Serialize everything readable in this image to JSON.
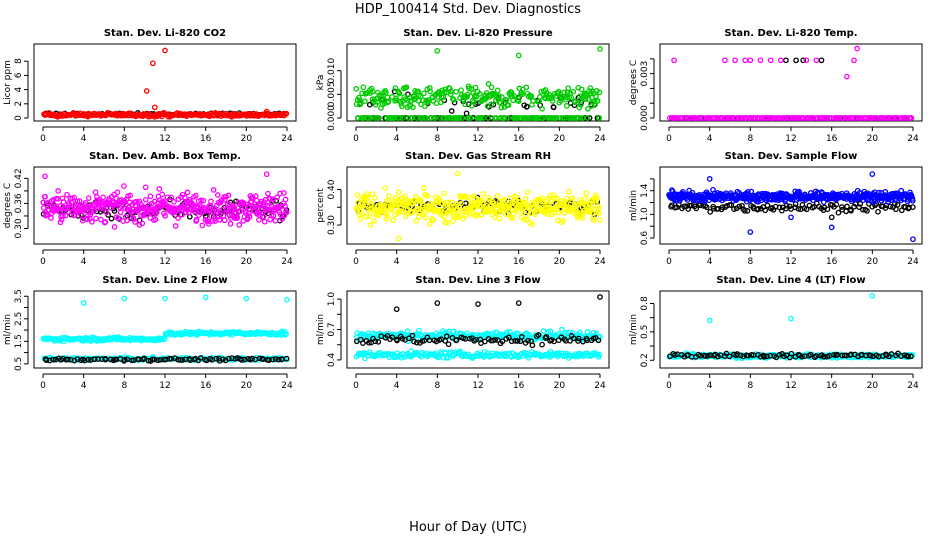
{
  "title": "HDP_100414  Std. Dev. Diagnostics",
  "xlabel": "Hour of Day (UTC)",
  "chart_data": [
    {
      "type": "scatter",
      "title": "Stan. Dev. Li-820 CO2",
      "ylabel": "Licor ppm",
      "xlim": [
        0,
        24
      ],
      "ylim": [
        0,
        10
      ],
      "xticks": [
        0,
        4,
        8,
        12,
        16,
        20,
        24
      ],
      "yticks": [
        0,
        2,
        4,
        6,
        8
      ],
      "series": [
        {
          "name": "black",
          "color": "#000000",
          "kind": "flat",
          "level": 0.55,
          "spread": 0.15,
          "count": 60
        },
        {
          "name": "red",
          "color": "#ff0000",
          "kind": "flat",
          "level": 0.45,
          "spread": 0.25,
          "count": 220,
          "outliers": [
            [
              12.0,
              9.5
            ],
            [
              10.8,
              7.7
            ],
            [
              10.2,
              3.8
            ],
            [
              11.0,
              1.5
            ],
            [
              22.0,
              0.9
            ]
          ]
        }
      ]
    },
    {
      "type": "scatter",
      "title": "Stan. Dev. Li-820 Pressure",
      "ylabel": "kPa",
      "xlim": [
        0,
        24
      ],
      "ylim": [
        0,
        0.015
      ],
      "xticks": [
        0,
        4,
        8,
        12,
        16,
        20,
        24
      ],
      "yticks": [
        0.0,
        0.005,
        0.01
      ],
      "yticklabels": [
        "0.000",
        "0.005",
        "0.010"
      ],
      "series": [
        {
          "name": "black",
          "color": "#000000",
          "kind": "mixed",
          "level": 0.0035,
          "spread": 0.002,
          "zeroFrac": 0.7,
          "count": 100
        },
        {
          "name": "green",
          "color": "#00cc00",
          "kind": "mixed",
          "level": 0.0045,
          "spread": 0.0022,
          "zeroFrac": 0.35,
          "count": 380,
          "outliers": [
            [
              8.0,
              0.0142
            ],
            [
              16.0,
              0.0132
            ],
            [
              24.0,
              0.0146
            ]
          ]
        }
      ]
    },
    {
      "type": "scatter",
      "title": "Stan. Dev. Li-820 Temp.",
      "ylabel": "degrees C",
      "xlim": [
        0,
        24
      ],
      "ylim": [
        0,
        0.0048
      ],
      "xticks": [
        0,
        4,
        8,
        12,
        16,
        20,
        24
      ],
      "yticks": [
        0.0,
        0.001,
        0.002,
        0.003,
        0.004
      ],
      "yticklabels": [
        "0.000",
        "",
        "",
        "0.003",
        ""
      ],
      "series": [
        {
          "name": "black",
          "color": "#000000",
          "kind": "flat",
          "level": 0.0,
          "spread": 0.0,
          "count": 70,
          "outliers": [
            [
              11.5,
              0.0039
            ],
            [
              12.5,
              0.0039
            ],
            [
              13.2,
              0.0039
            ],
            [
              15.0,
              0.0039
            ]
          ]
        },
        {
          "name": "magenta",
          "color": "#ff00ff",
          "kind": "flat",
          "level": 0.0,
          "spread": 0.0,
          "count": 140,
          "outliers": [
            [
              0.5,
              0.0039
            ],
            [
              5.5,
              0.0039
            ],
            [
              6.5,
              0.0039
            ],
            [
              7.5,
              0.0039
            ],
            [
              8.0,
              0.0039
            ],
            [
              9.0,
              0.0039
            ],
            [
              10.0,
              0.0039
            ],
            [
              11.0,
              0.0039
            ],
            [
              13.5,
              0.0039
            ],
            [
              14.5,
              0.0039
            ],
            [
              18.2,
              0.0039
            ],
            [
              17.5,
              0.0028
            ],
            [
              18.5,
              0.0047
            ]
          ]
        }
      ]
    },
    {
      "type": "scatter",
      "title": "Stan. Dev. Amb. Box Temp.",
      "ylabel": "degrees C",
      "xlim": [
        0,
        24
      ],
      "ylim": [
        0.27,
        0.44
      ],
      "xticks": [
        0,
        4,
        8,
        12,
        16,
        20,
        24
      ],
      "yticks": [
        0.3,
        0.33,
        0.36,
        0.39,
        0.42
      ],
      "yticklabels": [
        "0.30",
        "",
        "0.36",
        "",
        "0.42"
      ],
      "series": [
        {
          "name": "black",
          "color": "#000000",
          "kind": "flat",
          "level": 0.345,
          "spread": 0.025,
          "count": 110
        },
        {
          "name": "magenta",
          "color": "#ff00ff",
          "kind": "flat",
          "level": 0.35,
          "spread": 0.035,
          "count": 420,
          "outliers": [
            [
              0.2,
              0.425
            ],
            [
              22.0,
              0.43
            ]
          ]
        }
      ]
    },
    {
      "type": "scatter",
      "title": "Stan. Dev. Gas Stream RH",
      "ylabel": "percent",
      "xlim": [
        0,
        24
      ],
      "ylim": [
        0.255,
        0.455
      ],
      "xticks": [
        0,
        4,
        8,
        12,
        16,
        20,
        24
      ],
      "yticks": [
        0.3,
        0.35,
        0.4
      ],
      "yticklabels": [
        "0.30",
        "",
        "0.40"
      ],
      "series": [
        {
          "name": "black",
          "color": "#000000",
          "kind": "flat",
          "level": 0.35,
          "spread": 0.022,
          "count": 80
        },
        {
          "name": "yellow",
          "color": "#ffff00",
          "kind": "flat",
          "level": 0.35,
          "spread": 0.038,
          "count": 430,
          "outliers": [
            [
              4.2,
              0.262
            ],
            [
              10.0,
              0.445
            ]
          ]
        }
      ]
    },
    {
      "type": "scatter",
      "title": "Stan. Dev. Sample Flow",
      "ylabel": "ml/min",
      "xlim": [
        0,
        24
      ],
      "ylim": [
        0.55,
        1.75
      ],
      "xticks": [
        0,
        4,
        8,
        12,
        16,
        20,
        24
      ],
      "yticks": [
        0.6,
        0.8,
        1.0,
        1.2,
        1.4,
        1.6
      ],
      "yticklabels": [
        "0.6",
        "",
        "1.0",
        "",
        "1.4",
        ""
      ],
      "series": [
        {
          "name": "black",
          "color": "#000000",
          "kind": "flat",
          "level": 1.12,
          "spread": 0.07,
          "count": 110,
          "outliers": [
            [
              16.0,
              0.95
            ]
          ]
        },
        {
          "name": "blue",
          "color": "#0000ff",
          "kind": "flat",
          "level": 1.3,
          "spread": 0.08,
          "count": 470,
          "outliers": [
            [
              20.0,
              1.68
            ],
            [
              4.0,
              1.6
            ],
            [
              8.0,
              0.7
            ],
            [
              16.0,
              0.78
            ],
            [
              24.0,
              0.58
            ],
            [
              12.0,
              0.95
            ]
          ]
        }
      ]
    },
    {
      "type": "scatter",
      "title": "Stan. Dev. Line 2 Flow",
      "ylabel": "ml/min",
      "xlim": [
        0,
        24
      ],
      "ylim": [
        0.45,
        3.6
      ],
      "xticks": [
        0,
        4,
        8,
        12,
        16,
        20,
        24
      ],
      "yticks": [
        0.5,
        1.0,
        1.5,
        2.0,
        2.5,
        3.0,
        3.5
      ],
      "yticklabels": [
        "0.5",
        "",
        "1.5",
        "",
        "2.5",
        "",
        "3.5"
      ],
      "series": [
        {
          "name": "cyan-low",
          "color": "#00ffff",
          "kind": "flat",
          "level": 0.72,
          "spread": 0.06,
          "count": 180
        },
        {
          "name": "black",
          "color": "#000000",
          "kind": "flat",
          "level": 0.7,
          "spread": 0.06,
          "count": 90
        },
        {
          "name": "cyan-high",
          "color": "#00ffff",
          "kind": "step",
          "level": 1.6,
          "level2": 1.85,
          "stepAt": 12,
          "spread": 0.08,
          "count": 230,
          "outliers": [
            [
              4.0,
              3.2
            ],
            [
              8.0,
              3.4
            ],
            [
              12.0,
              3.4
            ],
            [
              16.0,
              3.45
            ],
            [
              20.0,
              3.4
            ],
            [
              24.0,
              3.35
            ]
          ]
        }
      ]
    },
    {
      "type": "scatter",
      "title": "Stan. Dev. Line 3 Flow",
      "ylabel": "ml/min",
      "xlim": [
        0,
        24
      ],
      "ylim": [
        0.35,
        1.05
      ],
      "xticks": [
        0,
        4,
        8,
        12,
        16,
        20,
        24
      ],
      "yticks": [
        0.4,
        0.55,
        0.7,
        0.85,
        1.0
      ],
      "yticklabels": [
        "0.4",
        "",
        "0.7",
        "",
        "1.0"
      ],
      "series": [
        {
          "name": "cyan-low",
          "color": "#00ffff",
          "kind": "flat",
          "level": 0.45,
          "spread": 0.03,
          "count": 200
        },
        {
          "name": "cyan-high",
          "color": "#00ffff",
          "kind": "flat",
          "level": 0.64,
          "spread": 0.04,
          "count": 230
        },
        {
          "name": "black",
          "color": "#000000",
          "kind": "flat",
          "level": 0.6,
          "spread": 0.045,
          "count": 90,
          "outliers": [
            [
              4.0,
              0.9
            ],
            [
              8.0,
              0.96
            ],
            [
              12.0,
              0.95
            ],
            [
              16.0,
              0.96
            ],
            [
              24.0,
              1.02
            ]
          ]
        }
      ]
    },
    {
      "type": "scatter",
      "title": "Stan. Dev. Line 4 (LT) Flow",
      "ylabel": "ml/min",
      "xlim": [
        0,
        24
      ],
      "ylim": [
        0.15,
        0.9
      ],
      "xticks": [
        0,
        4,
        8,
        12,
        16,
        20,
        24
      ],
      "yticks": [
        0.2,
        0.35,
        0.5,
        0.65,
        0.8
      ],
      "yticklabels": [
        "0.2",
        "",
        "0.5",
        "",
        "0.8"
      ],
      "series": [
        {
          "name": "cyan",
          "color": "#00ffff",
          "kind": "flat",
          "level": 0.245,
          "spread": 0.02,
          "count": 320,
          "outliers": [
            [
              4.0,
              0.62
            ],
            [
              12.0,
              0.64
            ],
            [
              20.0,
              0.88
            ]
          ]
        },
        {
          "name": "black",
          "color": "#000000",
          "kind": "flat",
          "level": 0.25,
          "spread": 0.02,
          "count": 90
        }
      ]
    }
  ]
}
